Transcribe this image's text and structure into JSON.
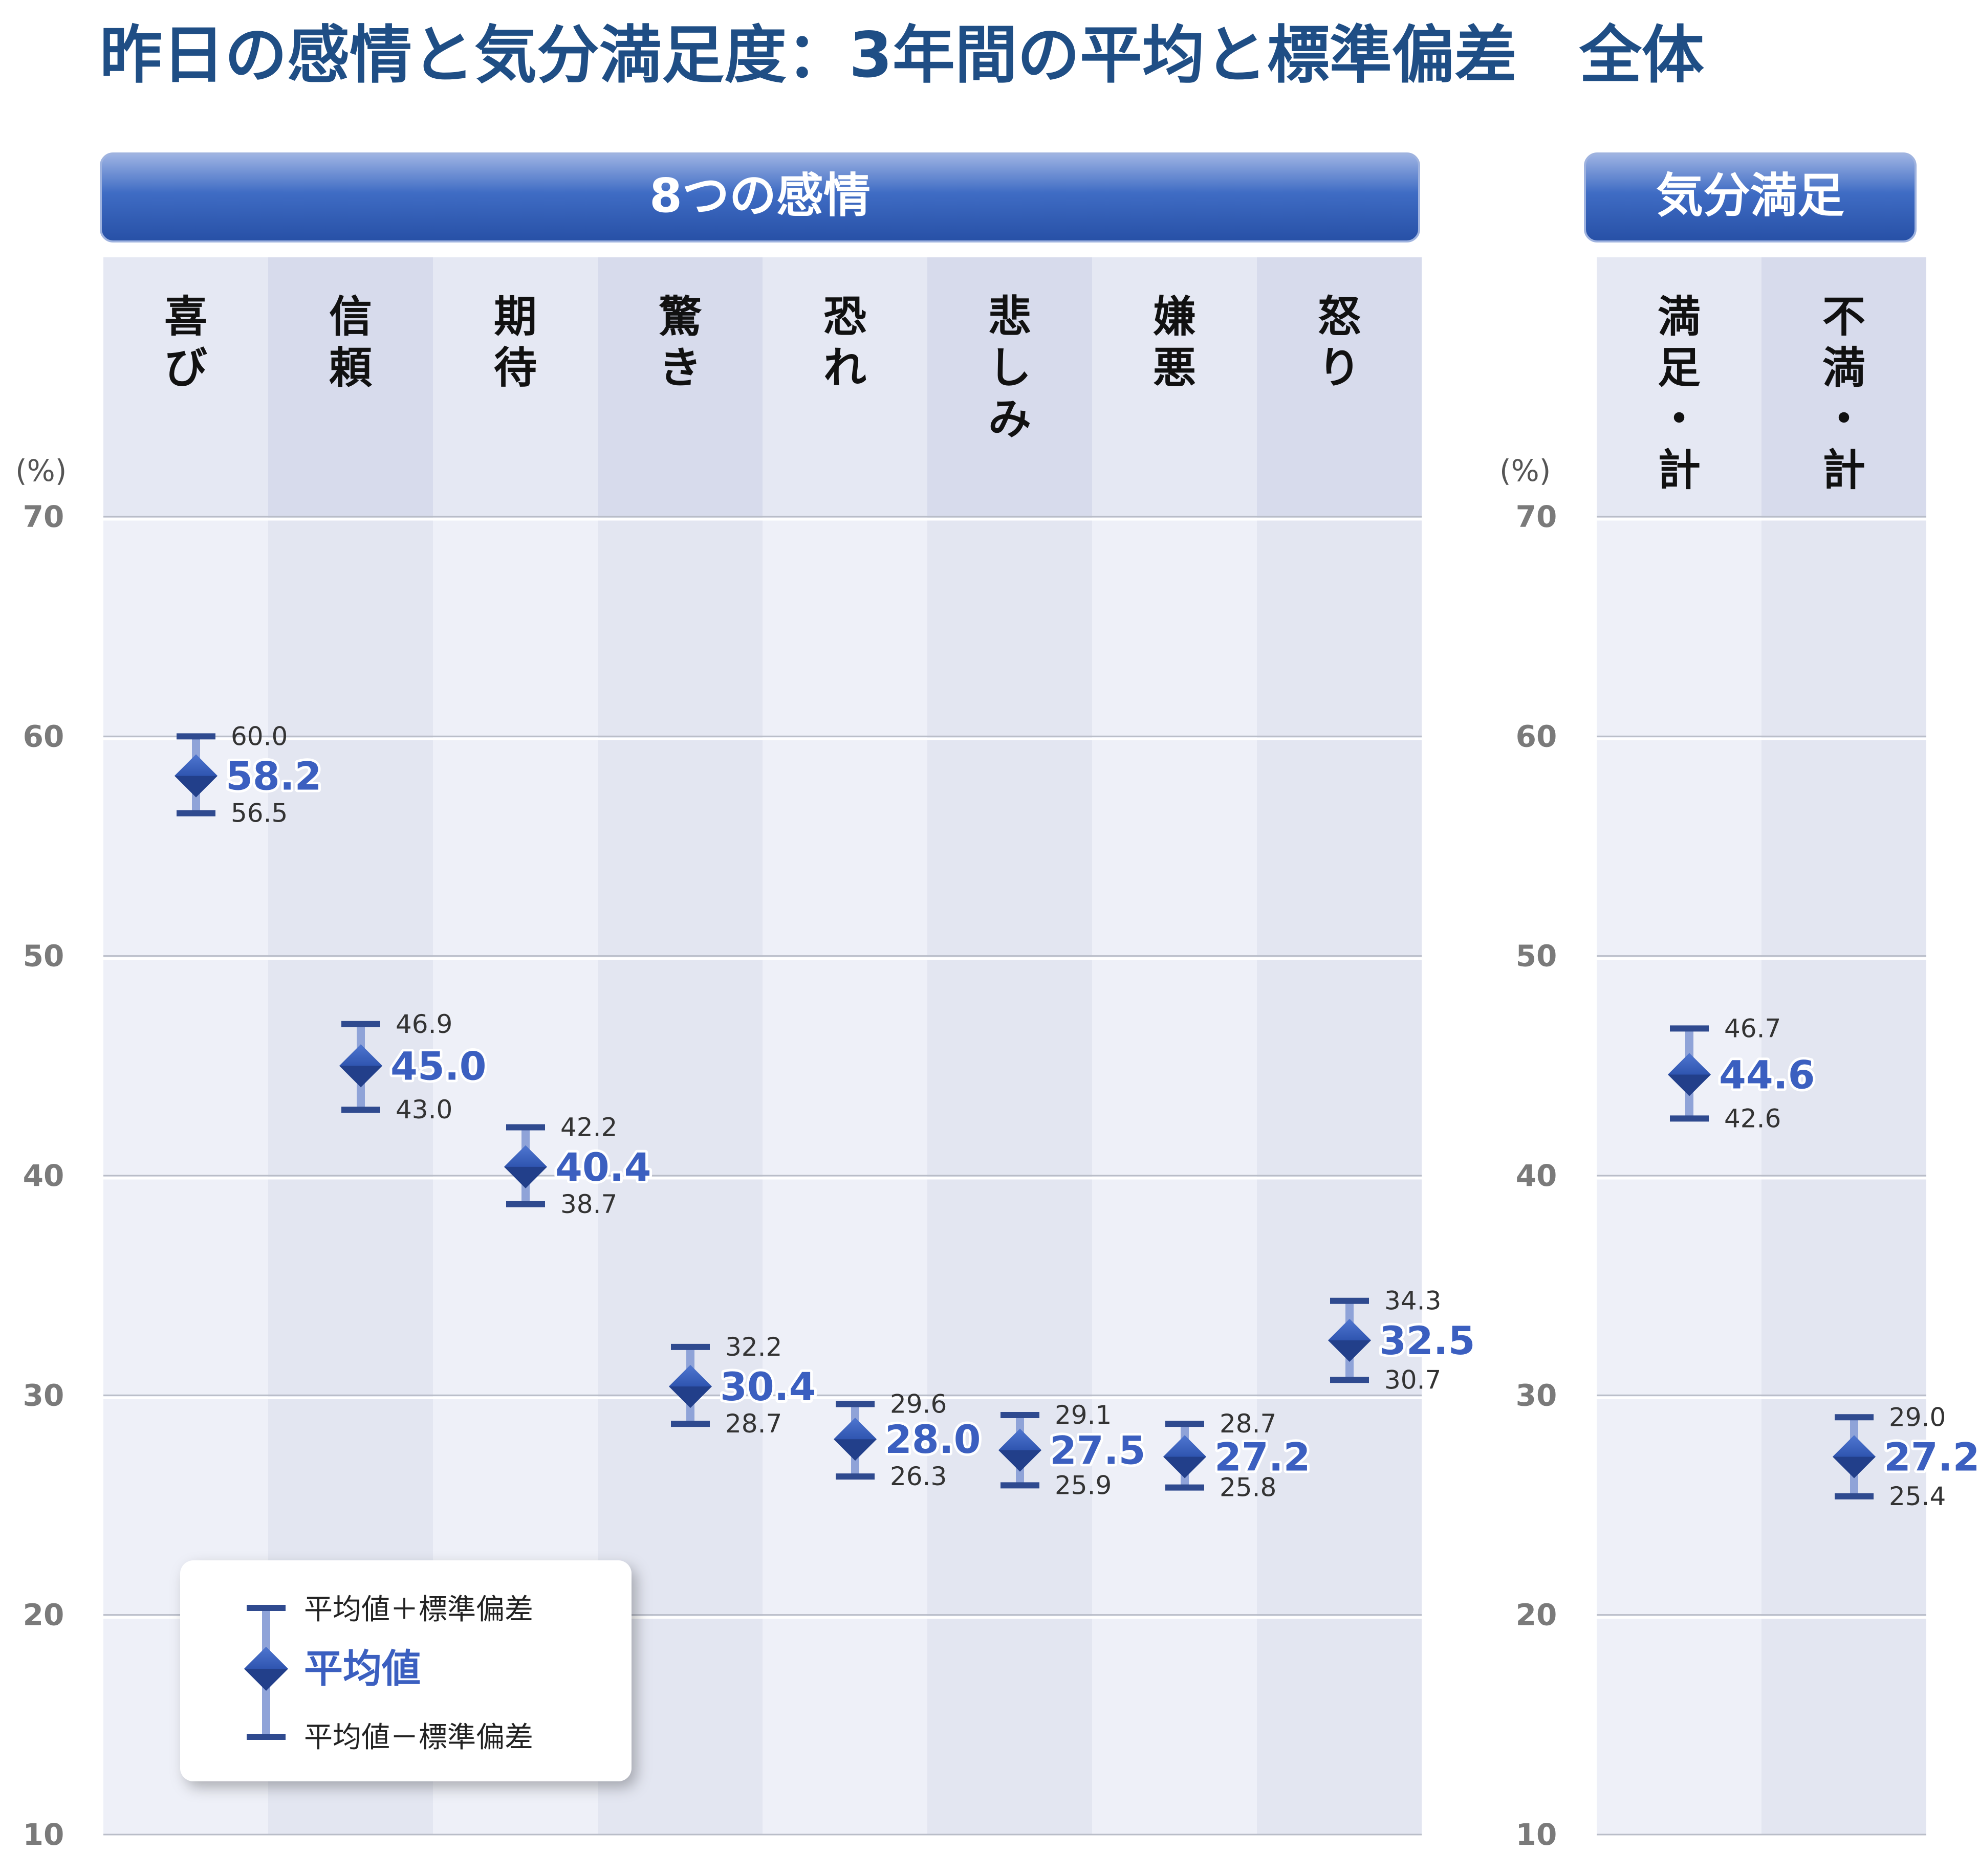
{
  "title": "昨日の感情と気分満足度：3年間の平均と標準偏差　全体",
  "panels": [
    {
      "banner": "8つの感情",
      "unit": "(%)"
    },
    {
      "banner": "気分満足",
      "unit": "(%)"
    }
  ],
  "legend": {
    "upper": "平均値＋標準偏差",
    "mean": "平均値",
    "lower": "平均値－標準偏差"
  },
  "colors": {
    "title": "#1f4e85",
    "banner": "#2f5fb3",
    "mean_text": "#3b5fc0",
    "error_bar": "#2f4a8f",
    "marker": "#2a4aa0",
    "band_light": "#eef0f8",
    "band_dark": "#e3e6f1"
  },
  "chart_data": [
    {
      "type": "scatter",
      "title": "8つの感情",
      "ylabel": "(%)",
      "ylim": [
        10,
        70
      ],
      "yticks": [
        10,
        20,
        30,
        40,
        50,
        60,
        70
      ],
      "grid": true,
      "legend_position": "bottom-left",
      "categories": [
        "喜び",
        "信頼",
        "期待",
        "驚き",
        "恐れ",
        "悲しみ",
        "嫌悪",
        "怒り"
      ],
      "series": [
        {
          "name": "平均値＋標準偏差",
          "values": [
            60.0,
            46.9,
            42.2,
            32.2,
            29.6,
            29.1,
            28.7,
            34.3
          ]
        },
        {
          "name": "平均値",
          "values": [
            58.2,
            45.0,
            40.4,
            30.4,
            28.0,
            27.5,
            27.2,
            32.5
          ]
        },
        {
          "name": "平均値－標準偏差",
          "values": [
            56.5,
            43.0,
            38.7,
            28.7,
            26.3,
            25.9,
            25.8,
            30.7
          ]
        }
      ]
    },
    {
      "type": "scatter",
      "title": "気分満足",
      "ylabel": "(%)",
      "ylim": [
        10,
        70
      ],
      "yticks": [
        10,
        20,
        30,
        40,
        50,
        60,
        70
      ],
      "grid": true,
      "categories": [
        "満足・計",
        "不満・計"
      ],
      "series": [
        {
          "name": "平均値＋標準偏差",
          "values": [
            46.7,
            29.0
          ]
        },
        {
          "name": "平均値",
          "values": [
            44.6,
            27.2
          ]
        },
        {
          "name": "平均値－標準偏差",
          "values": [
            42.6,
            25.4
          ]
        }
      ]
    }
  ]
}
